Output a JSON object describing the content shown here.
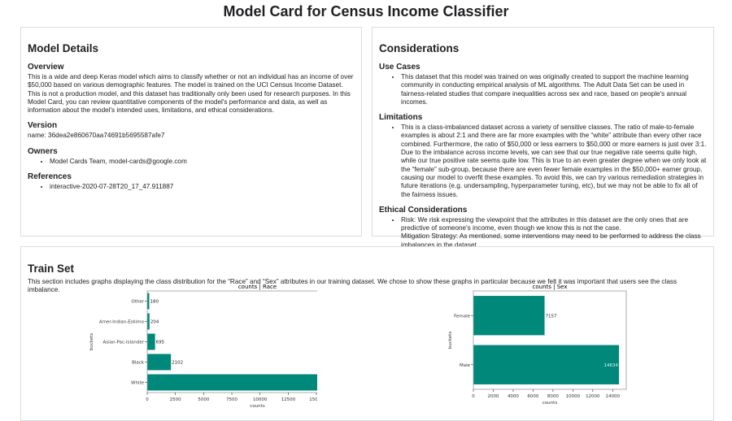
{
  "title": "Model Card for Census Income Classifier",
  "model_details": {
    "heading": "Model Details",
    "overview_heading": "Overview",
    "overview": "This is a wide and deep Keras model which aims to classify whether or not an individual has an income of over $50,000 based on various demographic features. The model is trained on the UCI Census Income Dataset. This is not a production model, and this dataset has traditionally only been used for research purposes. In this Model Card, you can review quantitative components of the model's performance and data, as well as information about the model's intended uses, limitations, and ethical considerations.",
    "version_heading": "Version",
    "version": "name: 36dea2e860670aa74691b5695587afe7",
    "owners_heading": "Owners",
    "owners": [
      "Model Cards Team, model-cards@google.com"
    ],
    "references_heading": "References",
    "references": [
      "interactive-2020-07-28T20_17_47.911887"
    ]
  },
  "considerations": {
    "heading": "Considerations",
    "use_cases_heading": "Use Cases",
    "use_cases": [
      "This dataset that this model was trained on was originally created to support the machine learning community in conducting empirical analysis of ML algorithms. The Adult Data Set can be used in fairness-related studies that compare inequalities across sex and race, based on people's annual incomes."
    ],
    "limitations_heading": "Limitations",
    "limitations": [
      "This is a class-imbalanced dataset across a variety of sensitive classes. The ratio of male-to-female examples is about 2:1 and there are far more examples with the “white” attribute than every other race combined. Furthermore, the ratio of $50,000 or less earners to $50,000 or more earners is just over 3:1. Due to the imbalance across income levels, we can see that our true negative rate seems quite high, while our true positive rate seems quite low. This is true to an even greater degree when we only look at the “female” sub-group, because there are even fewer female examples in the $50,000+ earner group, causing our model to overfit these examples. To avoid this, we can try various remediation strategies in future iterations (e.g. undersampling, hyperparameter tuning, etc), but we may not be able to fix all of the fairness issues."
    ],
    "ethical_heading": "Ethical Considerations",
    "ethical_risk": "Risk: We risk expressing the viewpoint that the attributes in this dataset are the only ones that are predictive of someone's income, even though we know this is not the case.",
    "ethical_mitigation": "Mitigation Strategy: As mentioned, some interventions may need to be performed to address the class imbalances in the dataset."
  },
  "train_set": {
    "heading": "Train Set",
    "description": "This section includes graphs displaying the class distribution for the “Race” and “Sex” attributes in our training dataset. We chose to show these graphs in particular because we felt it was important that users see the class imbalance."
  },
  "chart_data": [
    {
      "type": "bar",
      "orientation": "horizontal",
      "title": "counts | Race",
      "xlabel": "counts",
      "ylabel": "buckets",
      "categories": [
        "White",
        "Black",
        "Asian-Pac-Islander",
        "Amer-Indian-Eskimo",
        "Other"
      ],
      "values": [
        18610,
        2102,
        695,
        204,
        180
      ],
      "xlim": [
        0,
        19540
      ],
      "xticks": [
        0,
        2500,
        5000,
        7500,
        10000,
        12500,
        15000,
        17500
      ],
      "color": "#00897b"
    },
    {
      "type": "bar",
      "orientation": "horizontal",
      "title": "counts | Sex",
      "xlabel": "counts",
      "ylabel": "buckets",
      "categories": [
        "Male",
        "Female"
      ],
      "values": [
        14634,
        7157
      ],
      "xlim": [
        0,
        15366
      ],
      "xticks": [
        0,
        2000,
        4000,
        6000,
        8000,
        10000,
        12000,
        14000
      ],
      "color": "#00897b"
    }
  ]
}
